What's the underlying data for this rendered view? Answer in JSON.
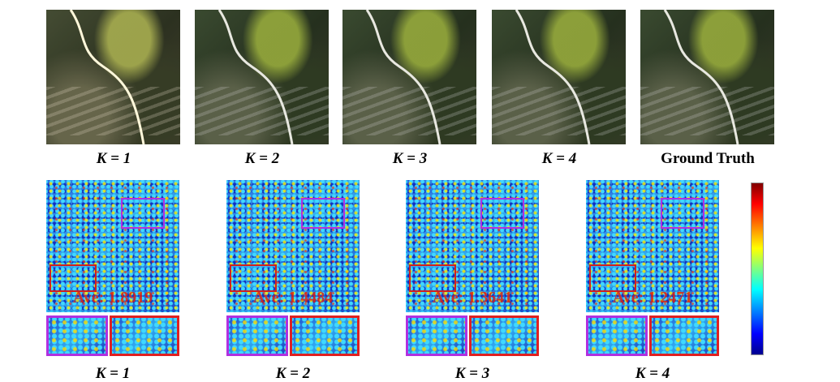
{
  "top_row": {
    "images": [
      {
        "label": "K = 1"
      },
      {
        "label": "K = 2"
      },
      {
        "label": "K = 3"
      },
      {
        "label": "K = 4"
      },
      {
        "label": "Ground Truth"
      }
    ]
  },
  "bottom_row": {
    "panels": [
      {
        "label": "K = 1",
        "average": "Ave: 1.8919"
      },
      {
        "label": "K = 2",
        "average": "Ave: 1.4484"
      },
      {
        "label": "K = 3",
        "average": "Ave: 1.3641"
      },
      {
        "label": "K = 4",
        "average": "Ave: 1.2471"
      }
    ]
  }
}
